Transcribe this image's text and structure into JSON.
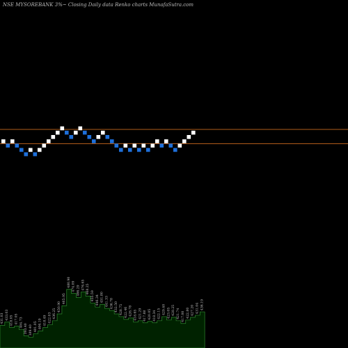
{
  "title": "NSE MYSOREBANK 3%~ Closing Daily data Renko charts MunafaSutra.com",
  "colors": {
    "background": "#000000",
    "up_brick": "#ffffff",
    "down_brick": "#1e6fd9",
    "hline": "#c96a1e",
    "volume_fill": "#002200",
    "volume_line": "#2e8b2e",
    "volume_label": "#c0c0c0"
  },
  "chart_data": {
    "type": "renko",
    "bricks": [
      {
        "dir": "up",
        "level": 1
      },
      {
        "dir": "down",
        "level": 0
      },
      {
        "dir": "up",
        "level": 1
      },
      {
        "dir": "down",
        "level": 0
      },
      {
        "dir": "down",
        "level": -1
      },
      {
        "dir": "down",
        "level": -2
      },
      {
        "dir": "up",
        "level": -1
      },
      {
        "dir": "down",
        "level": -2
      },
      {
        "dir": "up",
        "level": -1
      },
      {
        "dir": "up",
        "level": 0
      },
      {
        "dir": "up",
        "level": 1
      },
      {
        "dir": "up",
        "level": 2
      },
      {
        "dir": "up",
        "level": 3
      },
      {
        "dir": "up",
        "level": 4
      },
      {
        "dir": "down",
        "level": 3
      },
      {
        "dir": "down",
        "level": 2
      },
      {
        "dir": "up",
        "level": 3
      },
      {
        "dir": "up",
        "level": 4
      },
      {
        "dir": "down",
        "level": 3
      },
      {
        "dir": "down",
        "level": 2
      },
      {
        "dir": "down",
        "level": 1
      },
      {
        "dir": "up",
        "level": 2
      },
      {
        "dir": "up",
        "level": 3
      },
      {
        "dir": "down",
        "level": 2
      },
      {
        "dir": "down",
        "level": 1
      },
      {
        "dir": "down",
        "level": 0
      },
      {
        "dir": "down",
        "level": -1
      },
      {
        "dir": "up",
        "level": 0
      },
      {
        "dir": "down",
        "level": -1
      },
      {
        "dir": "up",
        "level": 0
      },
      {
        "dir": "down",
        "level": -1
      },
      {
        "dir": "up",
        "level": 0
      },
      {
        "dir": "down",
        "level": -1
      },
      {
        "dir": "up",
        "level": 0
      },
      {
        "dir": "up",
        "level": 1
      },
      {
        "dir": "down",
        "level": 0
      },
      {
        "dir": "up",
        "level": 1
      },
      {
        "dir": "down",
        "level": 0
      },
      {
        "dir": "down",
        "level": -1
      },
      {
        "dir": "up",
        "level": 0
      },
      {
        "dir": "up",
        "level": 1
      },
      {
        "dir": "up",
        "level": 2
      },
      {
        "dir": "up",
        "level": 3
      }
    ],
    "hlines": [
      {
        "level": 4.2
      },
      {
        "level": 0.9
      }
    ],
    "volume": [
      {
        "label": "431.03",
        "value": 0.33
      },
      {
        "label": "433.03",
        "value": 0.38
      },
      {
        "label": "418.05",
        "value": 0.3
      },
      {
        "label": "417.05",
        "value": 0.32
      },
      {
        "label": "404.73",
        "value": 0.27
      },
      {
        "label": "393.40",
        "value": 0.18
      },
      {
        "label": "389.40",
        "value": 0.16
      },
      {
        "label": "401.05",
        "value": 0.21
      },
      {
        "label": "406.19",
        "value": 0.25
      },
      {
        "label": "418.49",
        "value": 0.3
      },
      {
        "label": "422.03",
        "value": 0.34
      },
      {
        "label": "436.25",
        "value": 0.4
      },
      {
        "label": "450.90",
        "value": 0.5
      },
      {
        "label": "465.95",
        "value": 0.62
      },
      {
        "label": "480.90",
        "value": 0.86
      },
      {
        "label": "474.09",
        "value": 0.8
      },
      {
        "label": "466.29",
        "value": 0.74
      },
      {
        "label": "476.65",
        "value": 0.82
      },
      {
        "label": "468.25",
        "value": 0.76
      },
      {
        "label": "455.59",
        "value": 0.66
      },
      {
        "label": "446.34",
        "value": 0.6
      },
      {
        "label": "451.80",
        "value": 0.64
      },
      {
        "label": "441.33",
        "value": 0.58
      },
      {
        "label": "436.78",
        "value": 0.55
      },
      {
        "label": "432.50",
        "value": 0.5
      },
      {
        "label": "428.75",
        "value": 0.46
      },
      {
        "label": "422.46",
        "value": 0.42
      },
      {
        "label": "426.78",
        "value": 0.44
      },
      {
        "label": "418.65",
        "value": 0.38
      },
      {
        "label": "421.29",
        "value": 0.4
      },
      {
        "label": "417.88",
        "value": 0.37
      },
      {
        "label": "420.05",
        "value": 0.39
      },
      {
        "label": "418.34",
        "value": 0.37
      },
      {
        "label": "422.15",
        "value": 0.4
      },
      {
        "label": "429.40",
        "value": 0.46
      },
      {
        "label": "423.05",
        "value": 0.41
      },
      {
        "label": "428.25",
        "value": 0.45
      },
      {
        "label": "421.74",
        "value": 0.4
      },
      {
        "label": "417.00",
        "value": 0.36
      },
      {
        "label": "422.80",
        "value": 0.41
      },
      {
        "label": "427.20",
        "value": 0.45
      },
      {
        "label": "431.04",
        "value": 0.48
      },
      {
        "label": "436.19",
        "value": 0.53
      }
    ]
  }
}
